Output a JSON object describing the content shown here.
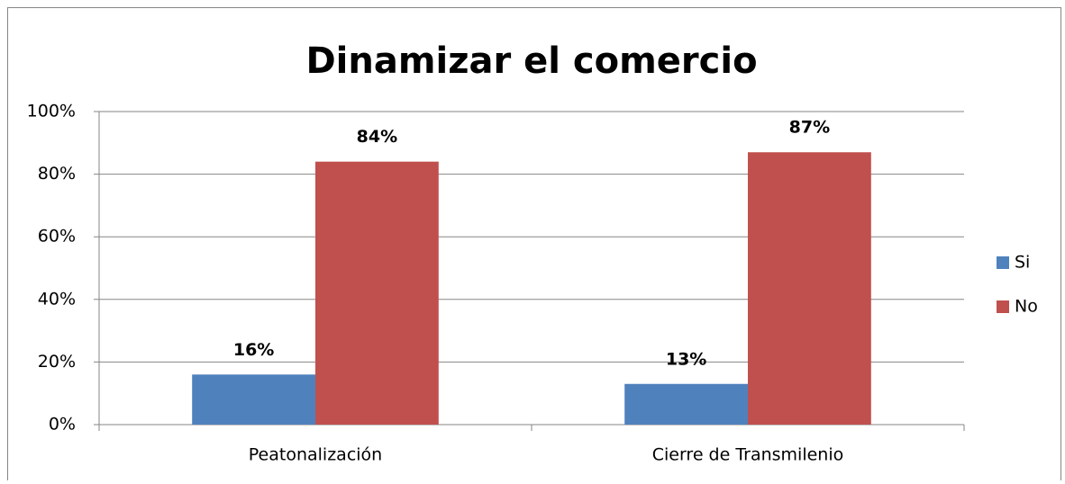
{
  "chart_data": {
    "type": "bar",
    "title": "Dinamizar el comercio",
    "categories": [
      "Peatonalización",
      "Cierre de Transmilenio"
    ],
    "series": [
      {
        "name": "Si",
        "color": "#4f81bd",
        "values": [
          16,
          13
        ],
        "value_labels": [
          "16%",
          "13%"
        ]
      },
      {
        "name": "No",
        "color": "#c0504d",
        "values": [
          84,
          87
        ],
        "value_labels": [
          "84%",
          "87%"
        ]
      }
    ],
    "ylim": [
      0,
      100
    ],
    "yticks": [
      {
        "value": 0,
        "label": "0%"
      },
      {
        "value": 20,
        "label": "20%"
      },
      {
        "value": 40,
        "label": "40%"
      },
      {
        "value": 60,
        "label": "60%"
      },
      {
        "value": 80,
        "label": "80%"
      },
      {
        "value": 100,
        "label": "100%"
      }
    ],
    "grid": true,
    "legend": "right"
  }
}
